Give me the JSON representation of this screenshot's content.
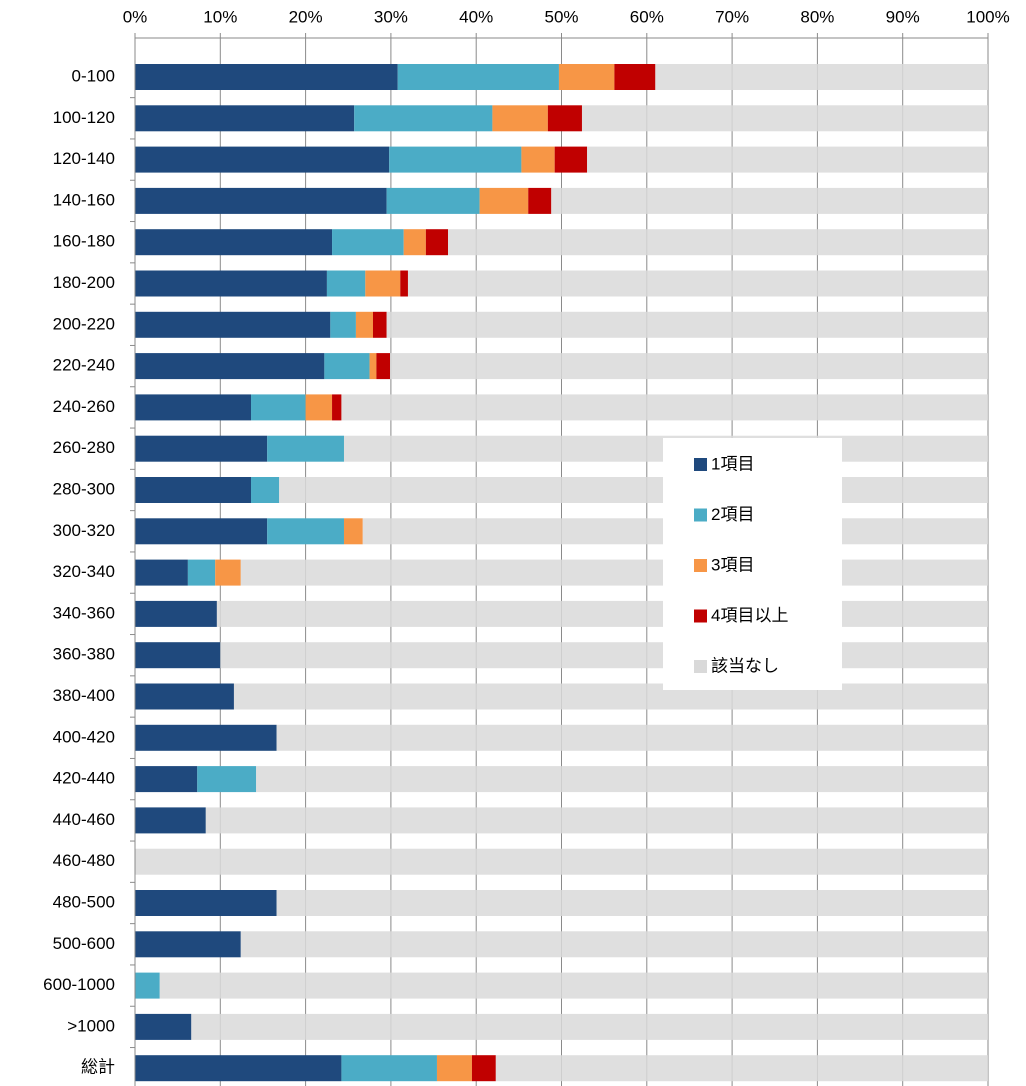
{
  "chart_data": {
    "type": "stacked_bar_horizontal_percent",
    "categories": [
      "0-100",
      "100-120",
      "120-140",
      "140-160",
      "160-180",
      "180-200",
      "200-220",
      "220-240",
      "240-260",
      "260-280",
      "280-300",
      "300-320",
      "320-340",
      "340-360",
      "360-380",
      "380-400",
      "400-420",
      "420-440",
      "440-460",
      "460-480",
      "480-500",
      "500-600",
      "600-1000",
      ">1000",
      "総計"
    ],
    "series": [
      {
        "name": "1項目",
        "color": "#1f497d",
        "values": [
          30.8,
          25.7,
          29.8,
          29.5,
          23.1,
          22.5,
          22.9,
          22.2,
          13.6,
          15.5,
          13.6,
          15.5,
          6.2,
          9.6,
          10.0,
          11.6,
          16.6,
          7.3,
          8.3,
          0,
          16.6,
          12.4,
          0,
          6.6,
          24.2
        ]
      },
      {
        "name": "2項目",
        "color": "#4bacc6",
        "values": [
          18.9,
          16.2,
          15.5,
          10.9,
          8.4,
          4.5,
          3.0,
          5.3,
          6.4,
          9.0,
          3.3,
          9.0,
          3.2,
          0,
          0,
          0,
          0,
          6.9,
          0,
          0,
          0,
          0,
          2.9,
          0,
          11.2
        ]
      },
      {
        "name": "3項目",
        "color": "#f79646",
        "values": [
          6.5,
          6.5,
          3.9,
          5.7,
          2.6,
          4.1,
          2.0,
          0.8,
          3.1,
          0,
          0,
          2.2,
          3.0,
          0,
          0,
          0,
          0,
          0,
          0,
          0,
          0,
          0,
          0,
          0,
          4.1
        ]
      },
      {
        "name": "4項目以上",
        "color": "#c00000",
        "values": [
          4.8,
          4.0,
          3.8,
          2.7,
          2.6,
          0.9,
          1.6,
          1.6,
          1.1,
          0,
          0,
          0,
          0,
          0,
          0,
          0,
          0,
          0,
          0,
          0,
          0,
          0,
          0,
          0,
          2.8
        ]
      },
      {
        "name": "該当なし",
        "color": "#d9d9d9",
        "values": [
          39.0,
          47.6,
          47.0,
          51.2,
          63.3,
          68.0,
          70.5,
          70.1,
          75.8,
          75.5,
          83.1,
          73.3,
          87.6,
          90.4,
          90.0,
          88.4,
          83.4,
          85.8,
          91.7,
          100,
          83.4,
          87.6,
          97.1,
          93.4,
          57.7
        ]
      }
    ],
    "xlim": [
      0,
      100
    ],
    "xticks": [
      {
        "value": 0,
        "label": "0%"
      },
      {
        "value": 10,
        "label": "10%"
      },
      {
        "value": 20,
        "label": "20%"
      },
      {
        "value": 30,
        "label": "30%"
      },
      {
        "value": 40,
        "label": "40%"
      },
      {
        "value": 50,
        "label": "50%"
      },
      {
        "value": 60,
        "label": "60%"
      },
      {
        "value": 70,
        "label": "70%"
      },
      {
        "value": 80,
        "label": "80%"
      },
      {
        "value": 90,
        "label": "90%"
      },
      {
        "value": 100,
        "label": "100%"
      }
    ],
    "grid": true
  }
}
